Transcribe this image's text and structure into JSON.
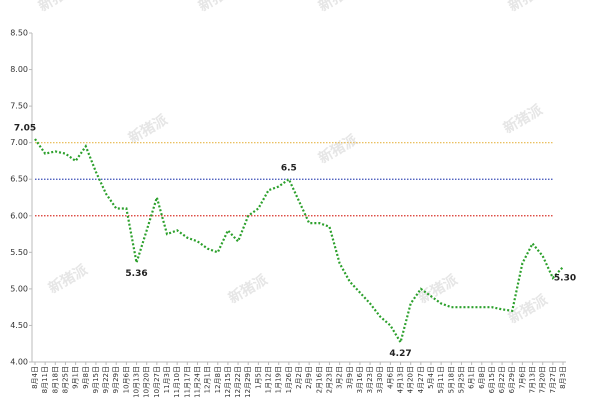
{
  "chart_data": {
    "type": "line",
    "watermark": "新猪派",
    "categories": [
      "8月4日",
      "8月11日",
      "8月18日",
      "8月25日",
      "9月1日",
      "9月8日",
      "9月15日",
      "9月22日",
      "9月29日",
      "10月6日",
      "10月13日",
      "10月20日",
      "10月27日",
      "11月3日",
      "11月10日",
      "11月17日",
      "11月24日",
      "12月1日",
      "12月8日",
      "12月15日",
      "12月22日",
      "12月29日",
      "1月5日",
      "1月12日",
      "1月19日",
      "1月26日",
      "2月2日",
      "2月9日",
      "2月16日",
      "2月23日",
      "3月2日",
      "3月9日",
      "3月16日",
      "3月23日",
      "3月30日",
      "4月6日",
      "4月13日",
      "4月20日",
      "4月27日",
      "5月4日",
      "5月11日",
      "5月18日",
      "5月25日",
      "6月1日",
      "6月8日",
      "6月15日",
      "6月22日",
      "6月29日",
      "7月6日",
      "7月13日",
      "7月20日",
      "7月27日",
      "8月3日"
    ],
    "series": [
      {
        "color": "#2ca02c",
        "values": [
          7.05,
          6.85,
          6.88,
          6.85,
          6.75,
          6.95,
          6.6,
          6.3,
          6.1,
          6.1,
          5.36,
          5.8,
          6.25,
          5.75,
          5.8,
          5.7,
          5.65,
          5.55,
          5.5,
          5.8,
          5.65,
          6.0,
          6.1,
          6.35,
          6.4,
          6.5,
          6.2,
          5.9,
          5.9,
          5.85,
          5.35,
          5.1,
          4.95,
          4.8,
          4.62,
          4.5,
          4.27,
          4.8,
          5.0,
          4.9,
          4.8,
          4.75,
          4.75,
          4.75,
          4.75,
          4.75,
          4.72,
          4.7,
          5.35,
          5.62,
          5.45,
          5.15,
          5.3
        ],
        "value_labels": [
          "7.05",
          null,
          null,
          null,
          null,
          null,
          null,
          null,
          null,
          null,
          "5.36",
          null,
          null,
          null,
          null,
          null,
          null,
          null,
          null,
          null,
          null,
          null,
          null,
          null,
          null,
          "6.5",
          null,
          null,
          null,
          null,
          null,
          null,
          null,
          null,
          null,
          null,
          "4.27",
          null,
          null,
          null,
          null,
          null,
          null,
          null,
          null,
          null,
          null,
          null,
          null,
          null,
          null,
          null,
          "5.30"
        ]
      }
    ],
    "reference_lines": [
      {
        "value": 7.0,
        "color": "#e8b84a"
      },
      {
        "value": 6.5,
        "color": "#3b4fb8"
      },
      {
        "value": 6.0,
        "color": "#d9342b"
      }
    ],
    "ylim": [
      4.0,
      8.5
    ],
    "yticks": [
      {
        "value": 4.0,
        "label": "4.00"
      },
      {
        "value": 4.5,
        "label": "4.50"
      },
      {
        "value": 5.0,
        "label": "5.00"
      },
      {
        "value": 5.5,
        "label": "5.50"
      },
      {
        "value": 6.0,
        "label": "6.00"
      },
      {
        "value": 6.5,
        "label": "6.50"
      },
      {
        "value": 7.0,
        "label": "7.00"
      },
      {
        "value": 7.5,
        "label": "7.50"
      },
      {
        "value": 8.0,
        "label": "8.00"
      },
      {
        "value": 8.5,
        "label": "8.50"
      }
    ],
    "grid": false
  }
}
